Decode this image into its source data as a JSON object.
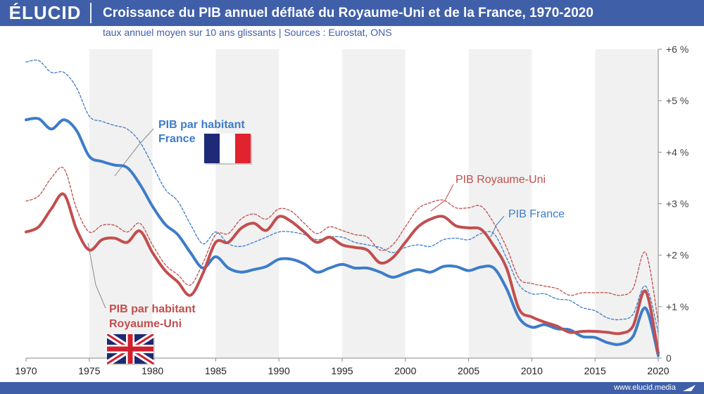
{
  "header": {
    "logo": "ÉLUCID",
    "title": "Croissance du PIB annuel déflaté du Royaume-Uni et de la France, 1970-2020",
    "subtitle": "taux annuel moyen sur 10 ans glissants  |  Sources : Eurostat, ONS"
  },
  "footer": {
    "url": "www.elucid.media"
  },
  "colors": {
    "brand": "#3f5fa8",
    "france": "#3d7cc9",
    "uk": "#c24e4e"
  },
  "chart_data": {
    "type": "line",
    "xlim": [
      1970,
      2020
    ],
    "ylim": [
      0,
      6
    ],
    "x_ticks": [
      "1970",
      "1975",
      "1980",
      "1985",
      "1990",
      "1995",
      "2000",
      "2005",
      "2010",
      "2015",
      "2020"
    ],
    "y_ticks": [
      "0",
      "+1 %",
      "+2 %",
      "+3 %",
      "+4 %",
      "+5 %",
      "+6 %"
    ],
    "grid": "alternating vertical bands",
    "series": [
      {
        "name": "PIB par habitant France",
        "color": "#3d7cc9",
        "style": "solid",
        "points": [
          [
            1970,
            4.63
          ],
          [
            1971,
            4.65
          ],
          [
            1972,
            4.45
          ],
          [
            1973,
            4.63
          ],
          [
            1974,
            4.42
          ],
          [
            1975,
            3.92
          ],
          [
            1976,
            3.82
          ],
          [
            1977,
            3.75
          ],
          [
            1978,
            3.7
          ],
          [
            1979,
            3.38
          ],
          [
            1980,
            2.95
          ],
          [
            1981,
            2.6
          ],
          [
            1982,
            2.4
          ],
          [
            1983,
            2.05
          ],
          [
            1984,
            1.75
          ],
          [
            1985,
            1.97
          ],
          [
            1986,
            1.75
          ],
          [
            1987,
            1.67
          ],
          [
            1988,
            1.72
          ],
          [
            1989,
            1.78
          ],
          [
            1990,
            1.92
          ],
          [
            1991,
            1.92
          ],
          [
            1992,
            1.83
          ],
          [
            1993,
            1.67
          ],
          [
            1994,
            1.75
          ],
          [
            1995,
            1.82
          ],
          [
            1996,
            1.75
          ],
          [
            1997,
            1.75
          ],
          [
            1998,
            1.67
          ],
          [
            1999,
            1.57
          ],
          [
            2000,
            1.65
          ],
          [
            2001,
            1.72
          ],
          [
            2002,
            1.67
          ],
          [
            2003,
            1.78
          ],
          [
            2004,
            1.78
          ],
          [
            2005,
            1.7
          ],
          [
            2006,
            1.77
          ],
          [
            2007,
            1.75
          ],
          [
            2008,
            1.35
          ],
          [
            2009,
            0.78
          ],
          [
            2010,
            0.6
          ],
          [
            2011,
            0.65
          ],
          [
            2012,
            0.57
          ],
          [
            2013,
            0.55
          ],
          [
            2014,
            0.42
          ],
          [
            2015,
            0.4
          ],
          [
            2016,
            0.3
          ],
          [
            2017,
            0.27
          ],
          [
            2018,
            0.42
          ],
          [
            2019,
            0.97
          ],
          [
            2020,
            0.05
          ]
        ]
      },
      {
        "name": "PIB par habitant Royaume-Uni",
        "color": "#c24e4e",
        "style": "solid",
        "points": [
          [
            1970,
            2.45
          ],
          [
            1971,
            2.55
          ],
          [
            1972,
            2.9
          ],
          [
            1973,
            3.18
          ],
          [
            1974,
            2.5
          ],
          [
            1975,
            2.1
          ],
          [
            1976,
            2.3
          ],
          [
            1977,
            2.33
          ],
          [
            1978,
            2.25
          ],
          [
            1979,
            2.47
          ],
          [
            1980,
            2.05
          ],
          [
            1981,
            1.7
          ],
          [
            1982,
            1.48
          ],
          [
            1983,
            1.22
          ],
          [
            1984,
            1.65
          ],
          [
            1985,
            2.25
          ],
          [
            1986,
            2.25
          ],
          [
            1987,
            2.52
          ],
          [
            1988,
            2.62
          ],
          [
            1989,
            2.48
          ],
          [
            1990,
            2.75
          ],
          [
            1991,
            2.65
          ],
          [
            1992,
            2.45
          ],
          [
            1993,
            2.25
          ],
          [
            1994,
            2.35
          ],
          [
            1995,
            2.2
          ],
          [
            1996,
            2.15
          ],
          [
            1997,
            2.1
          ],
          [
            1998,
            1.85
          ],
          [
            1999,
            1.95
          ],
          [
            2000,
            2.25
          ],
          [
            2001,
            2.55
          ],
          [
            2002,
            2.7
          ],
          [
            2003,
            2.75
          ],
          [
            2004,
            2.57
          ],
          [
            2005,
            2.53
          ],
          [
            2006,
            2.5
          ],
          [
            2007,
            2.18
          ],
          [
            2008,
            1.75
          ],
          [
            2009,
            0.95
          ],
          [
            2010,
            0.8
          ],
          [
            2011,
            0.7
          ],
          [
            2012,
            0.62
          ],
          [
            2013,
            0.5
          ],
          [
            2014,
            0.52
          ],
          [
            2015,
            0.52
          ],
          [
            2016,
            0.5
          ],
          [
            2017,
            0.48
          ],
          [
            2018,
            0.62
          ],
          [
            2019,
            1.3
          ],
          [
            2020,
            0.1
          ]
        ]
      },
      {
        "name": "PIB France",
        "color": "#3d7cc9",
        "style": "dashed",
        "points": [
          [
            1970,
            5.75
          ],
          [
            1971,
            5.78
          ],
          [
            1972,
            5.55
          ],
          [
            1973,
            5.55
          ],
          [
            1974,
            5.25
          ],
          [
            1975,
            4.7
          ],
          [
            1976,
            4.6
          ],
          [
            1977,
            4.52
          ],
          [
            1978,
            4.45
          ],
          [
            1979,
            4.2
          ],
          [
            1980,
            3.75
          ],
          [
            1981,
            3.28
          ],
          [
            1982,
            3.05
          ],
          [
            1983,
            2.6
          ],
          [
            1984,
            2.22
          ],
          [
            1985,
            2.45
          ],
          [
            1986,
            2.22
          ],
          [
            1987,
            2.17
          ],
          [
            1988,
            2.25
          ],
          [
            1989,
            2.35
          ],
          [
            1990,
            2.45
          ],
          [
            1991,
            2.45
          ],
          [
            1992,
            2.4
          ],
          [
            1993,
            2.3
          ],
          [
            1994,
            2.35
          ],
          [
            1995,
            2.35
          ],
          [
            1996,
            2.25
          ],
          [
            1997,
            2.2
          ],
          [
            1998,
            2.15
          ],
          [
            1999,
            2.05
          ],
          [
            2000,
            2.15
          ],
          [
            2001,
            2.2
          ],
          [
            2002,
            2.17
          ],
          [
            2003,
            2.3
          ],
          [
            2004,
            2.33
          ],
          [
            2005,
            2.3
          ],
          [
            2006,
            2.42
          ],
          [
            2007,
            2.42
          ],
          [
            2008,
            1.95
          ],
          [
            2009,
            1.42
          ],
          [
            2010,
            1.25
          ],
          [
            2011,
            1.25
          ],
          [
            2012,
            1.15
          ],
          [
            2013,
            1.12
          ],
          [
            2014,
            0.98
          ],
          [
            2015,
            0.92
          ],
          [
            2016,
            0.78
          ],
          [
            2017,
            0.75
          ],
          [
            2018,
            0.85
          ],
          [
            2019,
            1.4
          ],
          [
            2020,
            0.5
          ]
        ]
      },
      {
        "name": "PIB Royaume-Uni",
        "color": "#c24e4e",
        "style": "dashed",
        "points": [
          [
            1970,
            3.05
          ],
          [
            1971,
            3.15
          ],
          [
            1972,
            3.5
          ],
          [
            1973,
            3.68
          ],
          [
            1974,
            2.9
          ],
          [
            1975,
            2.45
          ],
          [
            1976,
            2.58
          ],
          [
            1977,
            2.58
          ],
          [
            1978,
            2.45
          ],
          [
            1979,
            2.62
          ],
          [
            1980,
            2.2
          ],
          [
            1981,
            1.82
          ],
          [
            1982,
            1.62
          ],
          [
            1983,
            1.42
          ],
          [
            1984,
            1.85
          ],
          [
            1985,
            2.4
          ],
          [
            1986,
            2.42
          ],
          [
            1987,
            2.7
          ],
          [
            1988,
            2.8
          ],
          [
            1989,
            2.7
          ],
          [
            1990,
            2.9
          ],
          [
            1991,
            2.85
          ],
          [
            1992,
            2.62
          ],
          [
            1993,
            2.42
          ],
          [
            1994,
            2.55
          ],
          [
            1995,
            2.48
          ],
          [
            1996,
            2.4
          ],
          [
            1997,
            2.35
          ],
          [
            1998,
            2.1
          ],
          [
            1999,
            2.2
          ],
          [
            2000,
            2.55
          ],
          [
            2001,
            2.9
          ],
          [
            2002,
            3.02
          ],
          [
            2003,
            3.07
          ],
          [
            2004,
            2.92
          ],
          [
            2005,
            2.92
          ],
          [
            2006,
            2.95
          ],
          [
            2007,
            2.62
          ],
          [
            2008,
            2.15
          ],
          [
            2009,
            1.55
          ],
          [
            2010,
            1.45
          ],
          [
            2011,
            1.4
          ],
          [
            2012,
            1.35
          ],
          [
            2013,
            1.22
          ],
          [
            2014,
            1.27
          ],
          [
            2015,
            1.27
          ],
          [
            2016,
            1.27
          ],
          [
            2017,
            1.22
          ],
          [
            2018,
            1.35
          ],
          [
            2019,
            2.05
          ],
          [
            2020,
            0.7
          ]
        ]
      }
    ],
    "annotations": [
      {
        "text": "PIB par habitant",
        "color": "#3d7cc9"
      },
      {
        "text": "France",
        "color": "#3d7cc9"
      },
      {
        "text": "PIB Royaume-Uni",
        "color": "#c24e4e"
      },
      {
        "text": "PIB France",
        "color": "#3d7cc9"
      },
      {
        "text": "PIB par habitant",
        "color": "#c24e4e"
      },
      {
        "text": "Royaume-Uni",
        "color": "#c24e4e"
      }
    ]
  }
}
